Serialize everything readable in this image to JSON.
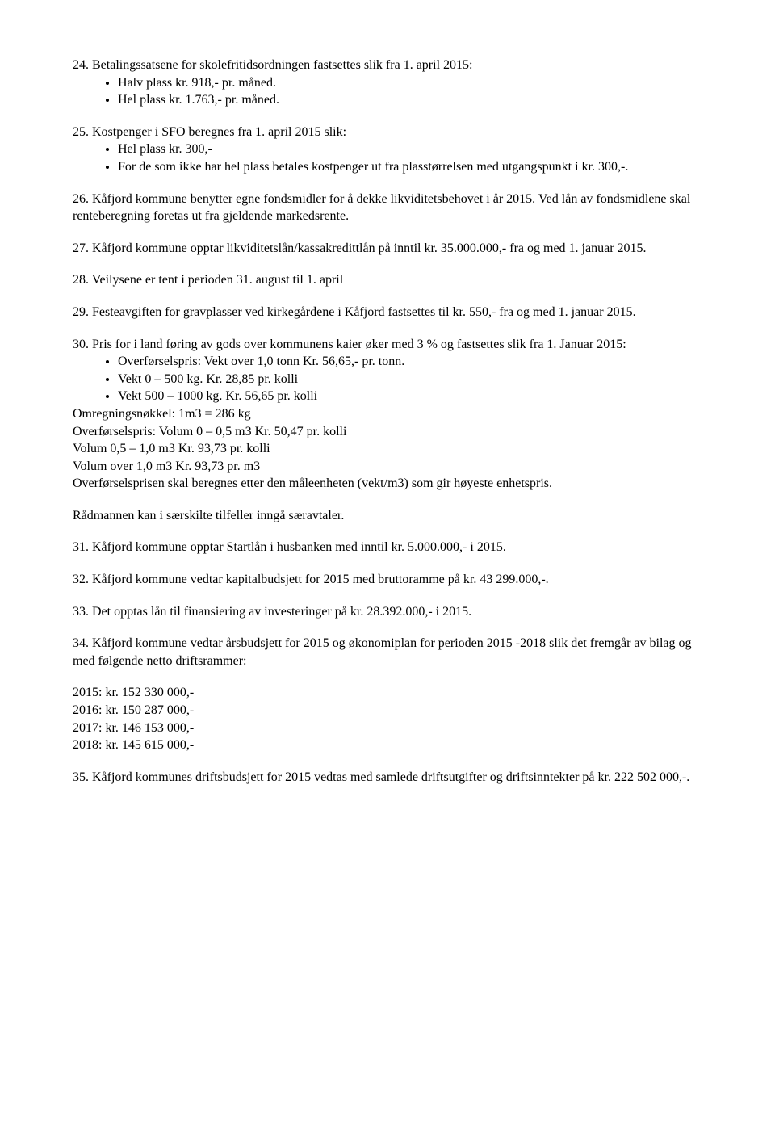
{
  "p24_intro": "24. Betalingssatsene for skolefritidsordningen fastsettes slik fra 1. april 2015:",
  "p24_b1": "Halv plass kr. 918,- pr. måned.",
  "p24_b2": "Hel plass kr. 1.763,- pr. måned.",
  "p25_intro": "25. Kostpenger i SFO beregnes fra 1. april 2015 slik:",
  "p25_b1": "Hel plass kr. 300,-",
  "p25_b2": "For de som ikke har hel plass betales kostpenger ut fra plasstørrelsen med utgangspunkt i kr. 300,-.",
  "p26": "26. Kåfjord kommune benytter egne fondsmidler for å dekke likviditetsbehovet i år 2015. Ved lån av fondsmidlene skal renteberegning foretas ut fra gjeldende markedsrente.",
  "p27": "27. Kåfjord kommune opptar likviditetslån/kassakredittlån på inntil kr. 35.000.000,- fra og med 1. januar 2015.",
  "p28": "28. Veilysene er tent i perioden 31. august til 1. april",
  "p29": "29. Festeavgiften for gravplasser ved kirkegårdene i Kåfjord fastsettes til kr. 550,- fra og med 1. januar 2015.",
  "p30_intro": "30. Pris for i land føring av gods over kommunens kaier øker med 3 % og fastsettes slik fra 1. Januar 2015:",
  "p30_b1": "Overførselspris: Vekt over 1,0 tonn Kr. 56,65,- pr. tonn.",
  "p30_b2": "Vekt 0 – 500 kg. Kr. 28,85 pr. kolli",
  "p30_b3": "Vekt 500 – 1000 kg. Kr. 56,65 pr. kolli",
  "p30_l1": "Omregningsnøkkel: 1m3 = 286 kg",
  "p30_l2": "Overførselspris: Volum 0 – 0,5 m3 Kr. 50,47 pr. kolli",
  "p30_l3": "Volum 0,5 – 1,0 m3 Kr. 93,73 pr. kolli",
  "p30_l4": "Volum over 1,0 m3 Kr. 93,73 pr. m3",
  "p30_l5": "Overførselsprisen skal beregnes etter den måleenheten (vekt/m3) som gir høyeste enhetspris.",
  "p30_l6": "Rådmannen kan i særskilte tilfeller inngå særavtaler.",
  "p31": "31. Kåfjord kommune opptar Startlån i husbanken med inntil kr. 5.000.000,- i 2015.",
  "p32": "32. Kåfjord kommune vedtar kapitalbudsjett for 2015 med bruttoramme på kr. 43 299.000,-.",
  "p33": "33. Det opptas lån til finansiering av investeringer på kr. 28.392.000,- i 2015.",
  "p34": "34. Kåfjord kommune vedtar årsbudsjett for 2015 og økonomiplan for perioden 2015 -2018 slik det fremgår av bilag og med følgende netto driftsrammer:",
  "y2015": "2015: kr. 152 330 000,-",
  "y2016": "2016: kr. 150 287 000,-",
  "y2017": "2017: kr. 146 153 000,-",
  "y2018": "2018: kr. 145 615 000,-",
  "p35": "35. Kåfjord kommunes driftsbudsjett for 2015 vedtas med samlede driftsutgifter og driftsinntekter på kr. 222 502 000,-."
}
